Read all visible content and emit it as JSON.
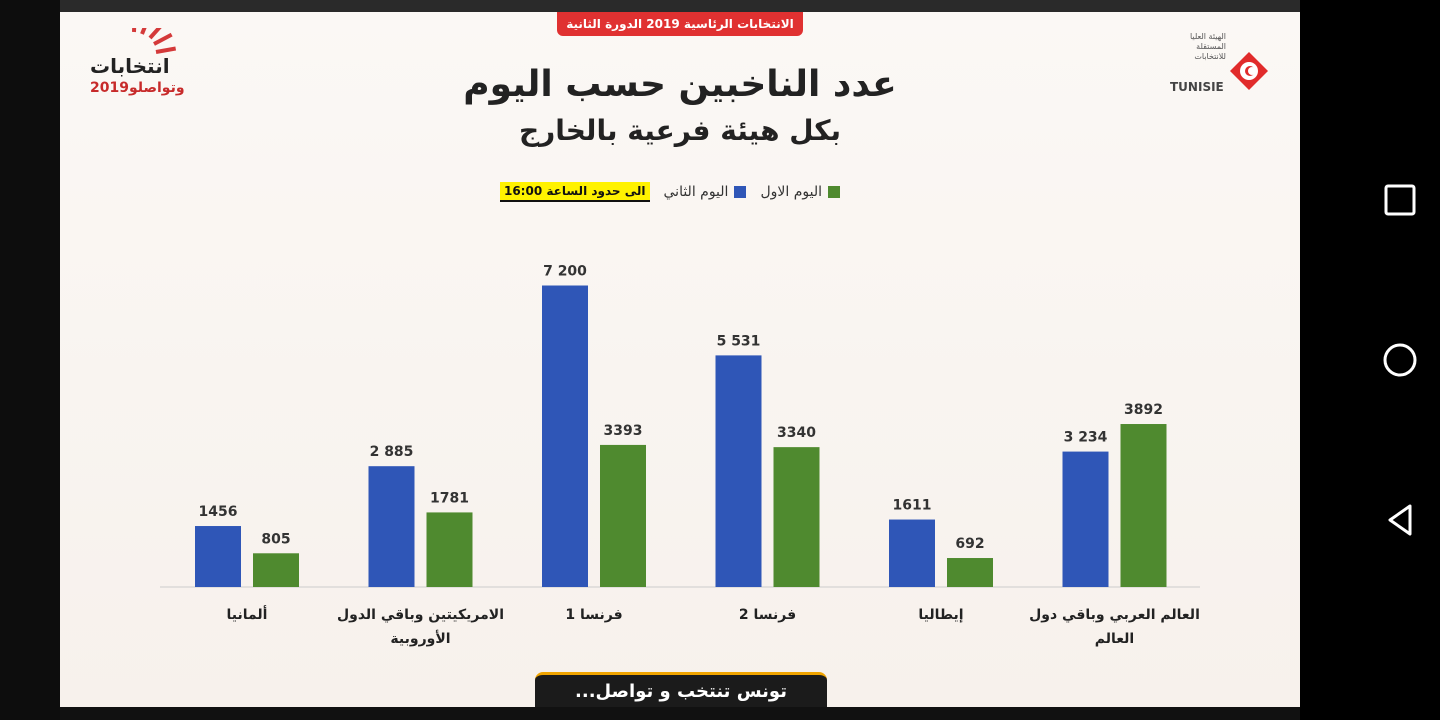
{
  "header": {
    "badge": "الانتخابات الرئاسية 2019 الدورة الثانية",
    "title": "عدد الناخبين حسب اليوم",
    "subtitle": "بكل هيئة فرعية بالخارج"
  },
  "legend": {
    "day1": "اليوم الاول",
    "day2": "اليوم الثاني",
    "note": "الى حدود الساعة 16:00"
  },
  "logos": {
    "left_main": "انتخابات",
    "left_sub": "وتواصلو2019",
    "right_main": "TUNISIE",
    "right_arabic": "الهيئة العليا المستقلة للانتخابات"
  },
  "footer": {
    "text": "تونس تنتخب و تواصل..."
  },
  "colors": {
    "day1": "#4f8a2f",
    "day2": "#2f56b7",
    "badge": "#e03131"
  },
  "chart_data": {
    "type": "bar",
    "categories": [
      [
        "ألمانيا"
      ],
      [
        "الامريكيتين وباقي الدول",
        "الأوروبية"
      ],
      [
        "فرنسا 1"
      ],
      [
        "فرنسا 2"
      ],
      [
        "إيطاليا"
      ],
      [
        "العالم العربي وباقي دول",
        "العالم"
      ]
    ],
    "series": [
      {
        "name": "اليوم الثاني",
        "values": [
          1456,
          2885,
          7200,
          5531,
          1611,
          3234
        ],
        "labels": [
          "1456",
          "2 885",
          "7 200",
          "5 531",
          "1611",
          "3 234"
        ]
      },
      {
        "name": "اليوم الاول",
        "values": [
          805,
          1781,
          3393,
          3340,
          692,
          3892
        ],
        "labels": [
          "805",
          "1781",
          "3393",
          "3340",
          "692",
          "3892"
        ]
      }
    ],
    "ylim": [
      0,
      8000
    ],
    "legend_position": "top-center",
    "grid": false
  },
  "nav": {
    "recent": "recent-apps-icon",
    "home": "home-icon",
    "back": "back-icon"
  }
}
